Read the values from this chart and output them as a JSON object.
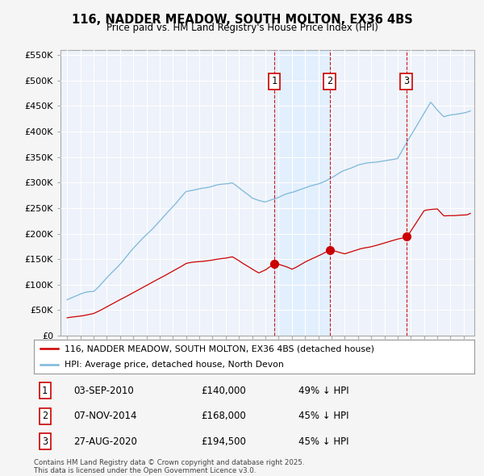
{
  "title_line1": "116, NADDER MEADOW, SOUTH MOLTON, EX36 4BS",
  "title_line2": "Price paid vs. HM Land Registry's House Price Index (HPI)",
  "ylim": [
    0,
    560000
  ],
  "yticks": [
    0,
    50000,
    100000,
    150000,
    200000,
    250000,
    300000,
    350000,
    400000,
    450000,
    500000,
    550000
  ],
  "ytick_labels": [
    "£0",
    "£50K",
    "£100K",
    "£150K",
    "£200K",
    "£250K",
    "£300K",
    "£350K",
    "£400K",
    "£450K",
    "£500K",
    "£550K"
  ],
  "hpi_color": "#7bb8d8",
  "price_color": "#cc0000",
  "vline_color": "#cc0000",
  "background_color": "#f5f5f5",
  "plot_bg_color": "#eef2fa",
  "grid_color": "#ffffff",
  "shade_color": "#ddeeff",
  "legend_entry1": "116, NADDER MEADOW, SOUTH MOLTON, EX36 4BS (detached house)",
  "legend_entry2": "HPI: Average price, detached house, North Devon",
  "transaction1_x": 2010.67,
  "transaction1_y": 140000,
  "transaction2_x": 2014.85,
  "transaction2_y": 168000,
  "transaction3_x": 2020.65,
  "transaction3_y": 194500,
  "transaction1_date": "03-SEP-2010",
  "transaction1_price": "£140,000",
  "transaction1_pct": "49% ↓ HPI",
  "transaction2_date": "07-NOV-2014",
  "transaction2_price": "£168,000",
  "transaction2_pct": "45% ↓ HPI",
  "transaction3_date": "27-AUG-2020",
  "transaction3_price": "£194,500",
  "transaction3_pct": "45% ↓ HPI",
  "footer": "Contains HM Land Registry data © Crown copyright and database right 2025.\nThis data is licensed under the Open Government Licence v3.0.",
  "xlim_start": 1994.5,
  "xlim_end": 2025.8
}
